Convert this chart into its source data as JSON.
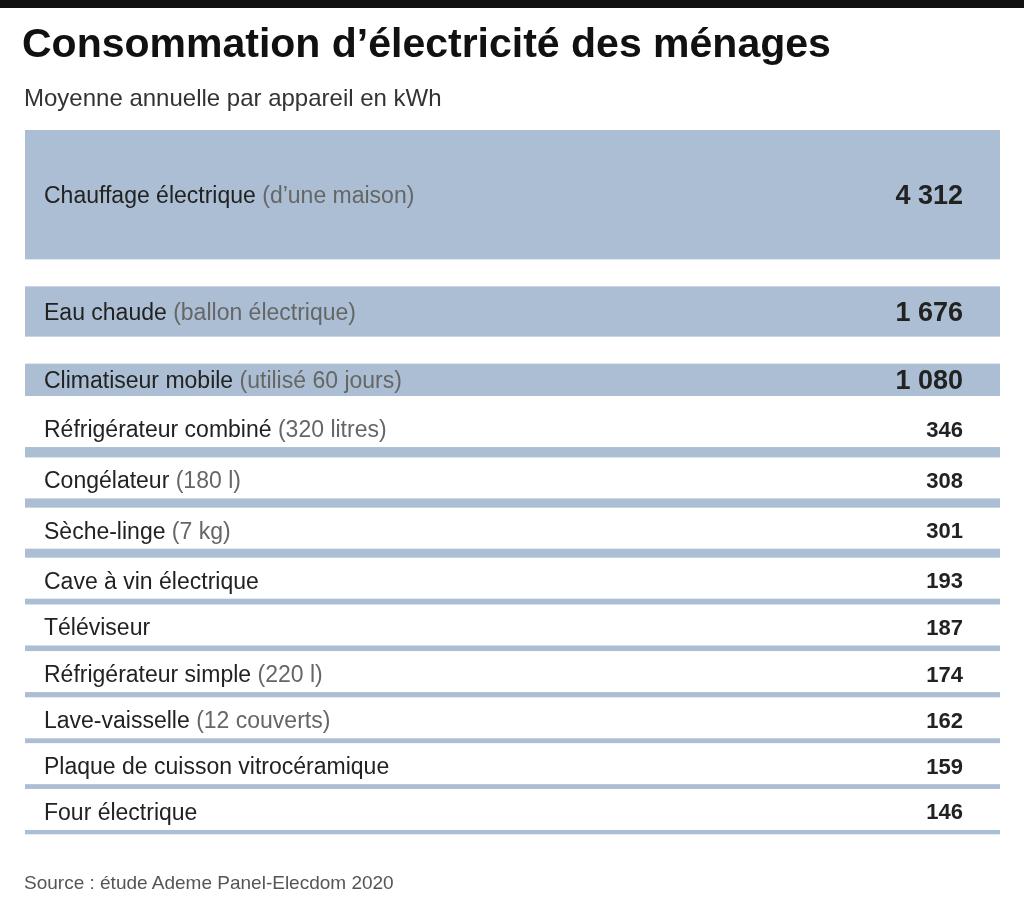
{
  "chart_data": {
    "type": "other",
    "title": "Consommation d’électricité des ménages",
    "subtitle": "Moyenne annuelle par appareil en kWh",
    "categories": [
      "Chauffage électrique (d’une maison)",
      "Eau chaude (ballon électrique)",
      "Climatiseur mobile (utilisé 60 jours)",
      "Réfrigérateur combiné (320 litres)",
      "Congélateur (180 l)",
      "Sèche-linge (7 kg)",
      "Cave à vin électrique",
      "Téléviseur",
      "Réfrigérateur simple (220 l)",
      "Lave-vaisselle (12 couverts)",
      "Plaque de cuisson vitrocéramique",
      "Four électrique"
    ],
    "values": [
      4312,
      1676,
      1080,
      346,
      308,
      301,
      193,
      187,
      174,
      162,
      159,
      146
    ],
    "value_labels": [
      "4 312",
      "1 676",
      "1 080",
      "346",
      "308",
      "301",
      "193",
      "187",
      "174",
      "162",
      "159",
      "146"
    ],
    "color": "#abbed3",
    "annotations": [
      "Source : étude Ademe Panel-Elecdom 2020"
    ]
  }
}
